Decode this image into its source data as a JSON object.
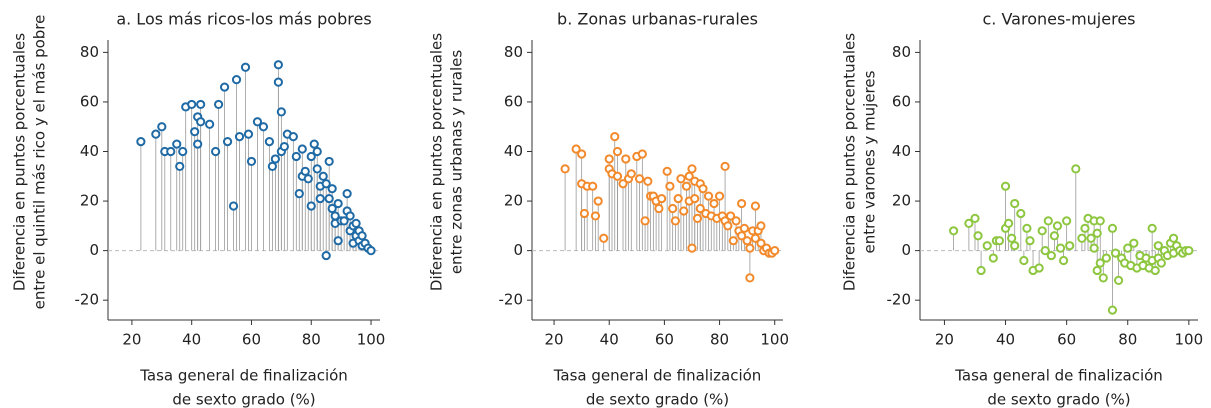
{
  "chart_data": [
    {
      "type": "lollipop",
      "title": "a. Los más ricos-los más pobres",
      "color": "#1f6aa5",
      "y_label": [
        "Diferencia en puntos porcentuales",
        "entre el quintil más rico y el más pobre"
      ],
      "x_label": [
        "Tasa general de finalización",
        "de sexto grado (%)"
      ],
      "xlim": [
        12,
        103
      ],
      "ylim": [
        -28,
        85
      ],
      "xticks": [
        20,
        40,
        60,
        80,
        100
      ],
      "yticks": [
        -20,
        0,
        20,
        40,
        60,
        80
      ],
      "x": [
        23,
        28,
        30,
        31,
        33,
        35,
        36,
        37,
        38,
        40,
        41,
        42,
        42,
        43,
        43,
        46,
        48,
        49,
        51,
        52,
        54,
        55,
        56,
        58,
        59,
        60,
        62,
        64,
        66,
        67,
        68,
        69,
        69,
        70,
        70,
        71,
        72,
        74,
        75,
        76,
        77,
        77,
        78,
        79,
        80,
        80,
        81,
        82,
        82,
        83,
        83,
        84,
        85,
        85,
        86,
        86,
        87,
        87,
        88,
        88,
        89,
        89,
        90,
        91,
        92,
        92,
        93,
        93,
        94,
        94,
        95,
        95,
        96,
        96,
        97,
        97,
        98,
        99,
        100
      ],
      "values": [
        44,
        47,
        50,
        40,
        40,
        43,
        34,
        40,
        58,
        59,
        48,
        43,
        54,
        59,
        52,
        51,
        40,
        59,
        66,
        44,
        18,
        69,
        46,
        74,
        47,
        36,
        52,
        50,
        44,
        34,
        37,
        68,
        75,
        56,
        40,
        42,
        47,
        46,
        38,
        23,
        30,
        41,
        32,
        29,
        18,
        38,
        43,
        40,
        33,
        26,
        21,
        30,
        -2,
        27,
        36,
        21,
        17,
        25,
        14,
        11,
        4,
        19,
        12,
        12,
        16,
        23,
        14,
        8,
        10,
        3,
        6,
        11,
        4,
        8,
        6,
        2,
        3,
        1,
        0
      ]
    },
    {
      "type": "lollipop",
      "title": "b. Zonas urbanas-rurales",
      "color": "#f28a2c",
      "y_label": [
        "Diferencia en puntos porcentuales",
        "entre zonas urbanas y rurales"
      ],
      "x_label": [
        "Tasa general de finalización",
        "de sexto grado (%)"
      ],
      "xlim": [
        12,
        103
      ],
      "ylim": [
        -28,
        85
      ],
      "xticks": [
        20,
        40,
        60,
        80,
        100
      ],
      "yticks": [
        -20,
        0,
        20,
        40,
        60,
        80
      ],
      "x": [
        24,
        28,
        30,
        30,
        31,
        32,
        34,
        35,
        36,
        38,
        40,
        40,
        41,
        42,
        43,
        43,
        45,
        46,
        47,
        48,
        50,
        51,
        52,
        53,
        54,
        55,
        56,
        57,
        58,
        59,
        61,
        62,
        63,
        64,
        65,
        66,
        67,
        68,
        69,
        69,
        70,
        70,
        71,
        71,
        72,
        73,
        73,
        74,
        75,
        76,
        77,
        78,
        79,
        80,
        81,
        82,
        82,
        83,
        84,
        85,
        86,
        87,
        88,
        88,
        89,
        90,
        91,
        91,
        92,
        93,
        93,
        94,
        95,
        95,
        96,
        97,
        98,
        99,
        100
      ],
      "values": [
        33,
        41,
        39,
        27,
        15,
        26,
        26,
        14,
        20,
        5,
        37,
        33,
        31,
        46,
        40,
        30,
        27,
        37,
        29,
        31,
        38,
        29,
        39,
        12,
        28,
        22,
        22,
        20,
        17,
        21,
        32,
        26,
        17,
        12,
        21,
        29,
        16,
        26,
        20,
        30,
        33,
        1,
        28,
        21,
        13,
        17,
        27,
        25,
        15,
        22,
        14,
        19,
        13,
        22,
        14,
        34,
        12,
        10,
        14,
        4,
        12,
        8,
        19,
        6,
        9,
        4,
        -11,
        1,
        8,
        5,
        18,
        8,
        3,
        10,
        0,
        1,
        -1,
        -1,
        0
      ]
    },
    {
      "type": "lollipop",
      "title": "c. Varones-mujeres",
      "color": "#8dc63f",
      "y_label": [
        "Diferencia en puntos porcentuales",
        "entre varones y mujeres"
      ],
      "x_label": [
        "Tasa general de finalización",
        "de sexto grado (%)"
      ],
      "xlim": [
        12,
        103
      ],
      "ylim": [
        -28,
        85
      ],
      "xticks": [
        20,
        40,
        60,
        80,
        100
      ],
      "yticks": [
        -20,
        0,
        20,
        40,
        60,
        80
      ],
      "x": [
        23,
        28,
        30,
        31,
        32,
        34,
        36,
        37,
        38,
        40,
        40,
        41,
        42,
        43,
        43,
        45,
        46,
        47,
        48,
        49,
        51,
        52,
        53,
        54,
        55,
        56,
        57,
        58,
        59,
        60,
        61,
        63,
        65,
        66,
        67,
        68,
        69,
        69,
        70,
        70,
        71,
        71,
        72,
        73,
        75,
        75,
        76,
        77,
        78,
        79,
        80,
        81,
        82,
        83,
        84,
        85,
        86,
        87,
        88,
        88,
        89,
        90,
        90,
        91,
        92,
        93,
        94,
        95,
        95,
        96,
        97,
        98,
        99,
        100
      ],
      "values": [
        8,
        11,
        13,
        6,
        -8,
        2,
        -3,
        4,
        4,
        9,
        26,
        11,
        5,
        2,
        19,
        15,
        -4,
        9,
        4,
        -8,
        -7,
        8,
        0,
        12,
        -2,
        6,
        10,
        1,
        -4,
        12,
        2,
        33,
        5,
        9,
        13,
        5,
        12,
        1,
        7,
        -8,
        -5,
        12,
        -11,
        -3,
        -24,
        9,
        -1,
        -12,
        -3,
        -5,
        1,
        -6,
        3,
        -7,
        -2,
        -6,
        -3,
        -7,
        -4,
        9,
        -8,
        -3,
        2,
        -5,
        0,
        -2,
        3,
        5,
        -1,
        2,
        0,
        -1,
        0,
        0
      ]
    }
  ]
}
